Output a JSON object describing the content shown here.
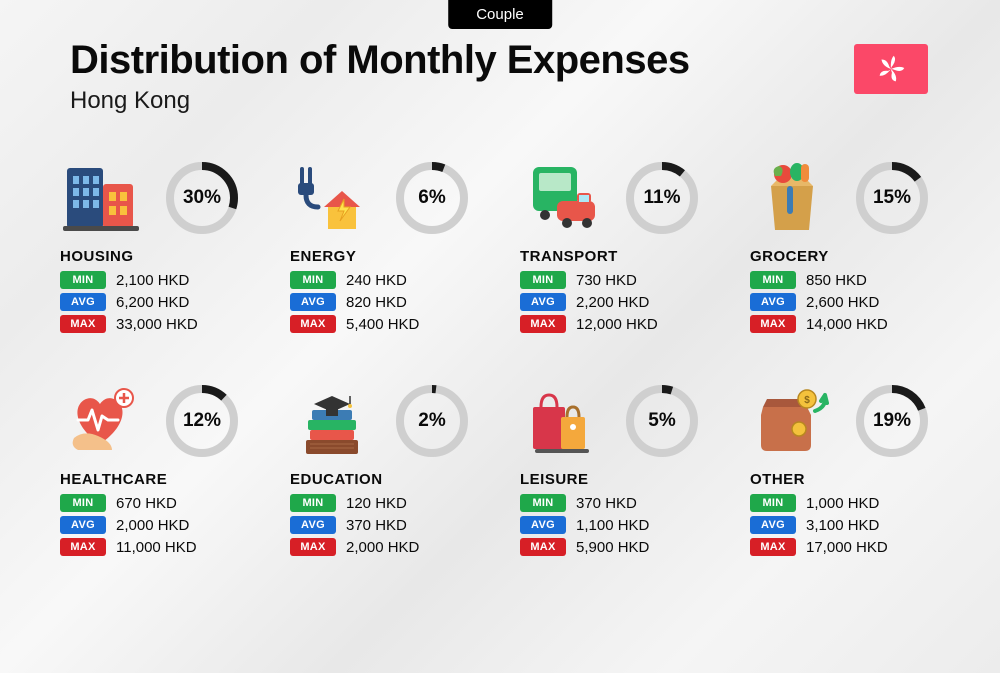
{
  "tag_label": "Couple",
  "title": "Distribution of Monthly Expenses",
  "subtitle": "Hong Kong",
  "flag_bg": "#fb4868",
  "currency": "HKD",
  "badges": {
    "min": "MIN",
    "avg": "AVG",
    "max": "MAX"
  },
  "badge_colors": {
    "min": "#1fa84a",
    "avg": "#1a6dd6",
    "max": "#d71f26"
  },
  "donut": {
    "track_color": "#cfcfcf",
    "arc_color": "#1a1a1a",
    "stroke_width": 8,
    "radius": 32
  },
  "typography": {
    "title_fontsize": 40,
    "subtitle_fontsize": 24,
    "category_fontsize": 15,
    "pct_fontsize": 19,
    "value_fontsize": 15
  },
  "background_gradient": [
    "#f5f5f5",
    "#ececec",
    "#f8f8f8",
    "#e8e8e8"
  ],
  "categories": [
    {
      "name": "HOUSING",
      "pct": 30,
      "min": "2,100",
      "avg": "6,200",
      "max": "33,000"
    },
    {
      "name": "ENERGY",
      "pct": 6,
      "min": "240",
      "avg": "820",
      "max": "5,400"
    },
    {
      "name": "TRANSPORT",
      "pct": 11,
      "min": "730",
      "avg": "2,200",
      "max": "12,000"
    },
    {
      "name": "GROCERY",
      "pct": 15,
      "min": "850",
      "avg": "2,600",
      "max": "14,000"
    },
    {
      "name": "HEALTHCARE",
      "pct": 12,
      "min": "670",
      "avg": "2,000",
      "max": "11,000"
    },
    {
      "name": "EDUCATION",
      "pct": 2,
      "min": "120",
      "avg": "370",
      "max": "2,000"
    },
    {
      "name": "LEISURE",
      "pct": 5,
      "min": "370",
      "avg": "1,100",
      "max": "5,900"
    },
    {
      "name": "OTHER",
      "pct": 19,
      "min": "1,000",
      "avg": "3,100",
      "max": "17,000"
    }
  ]
}
